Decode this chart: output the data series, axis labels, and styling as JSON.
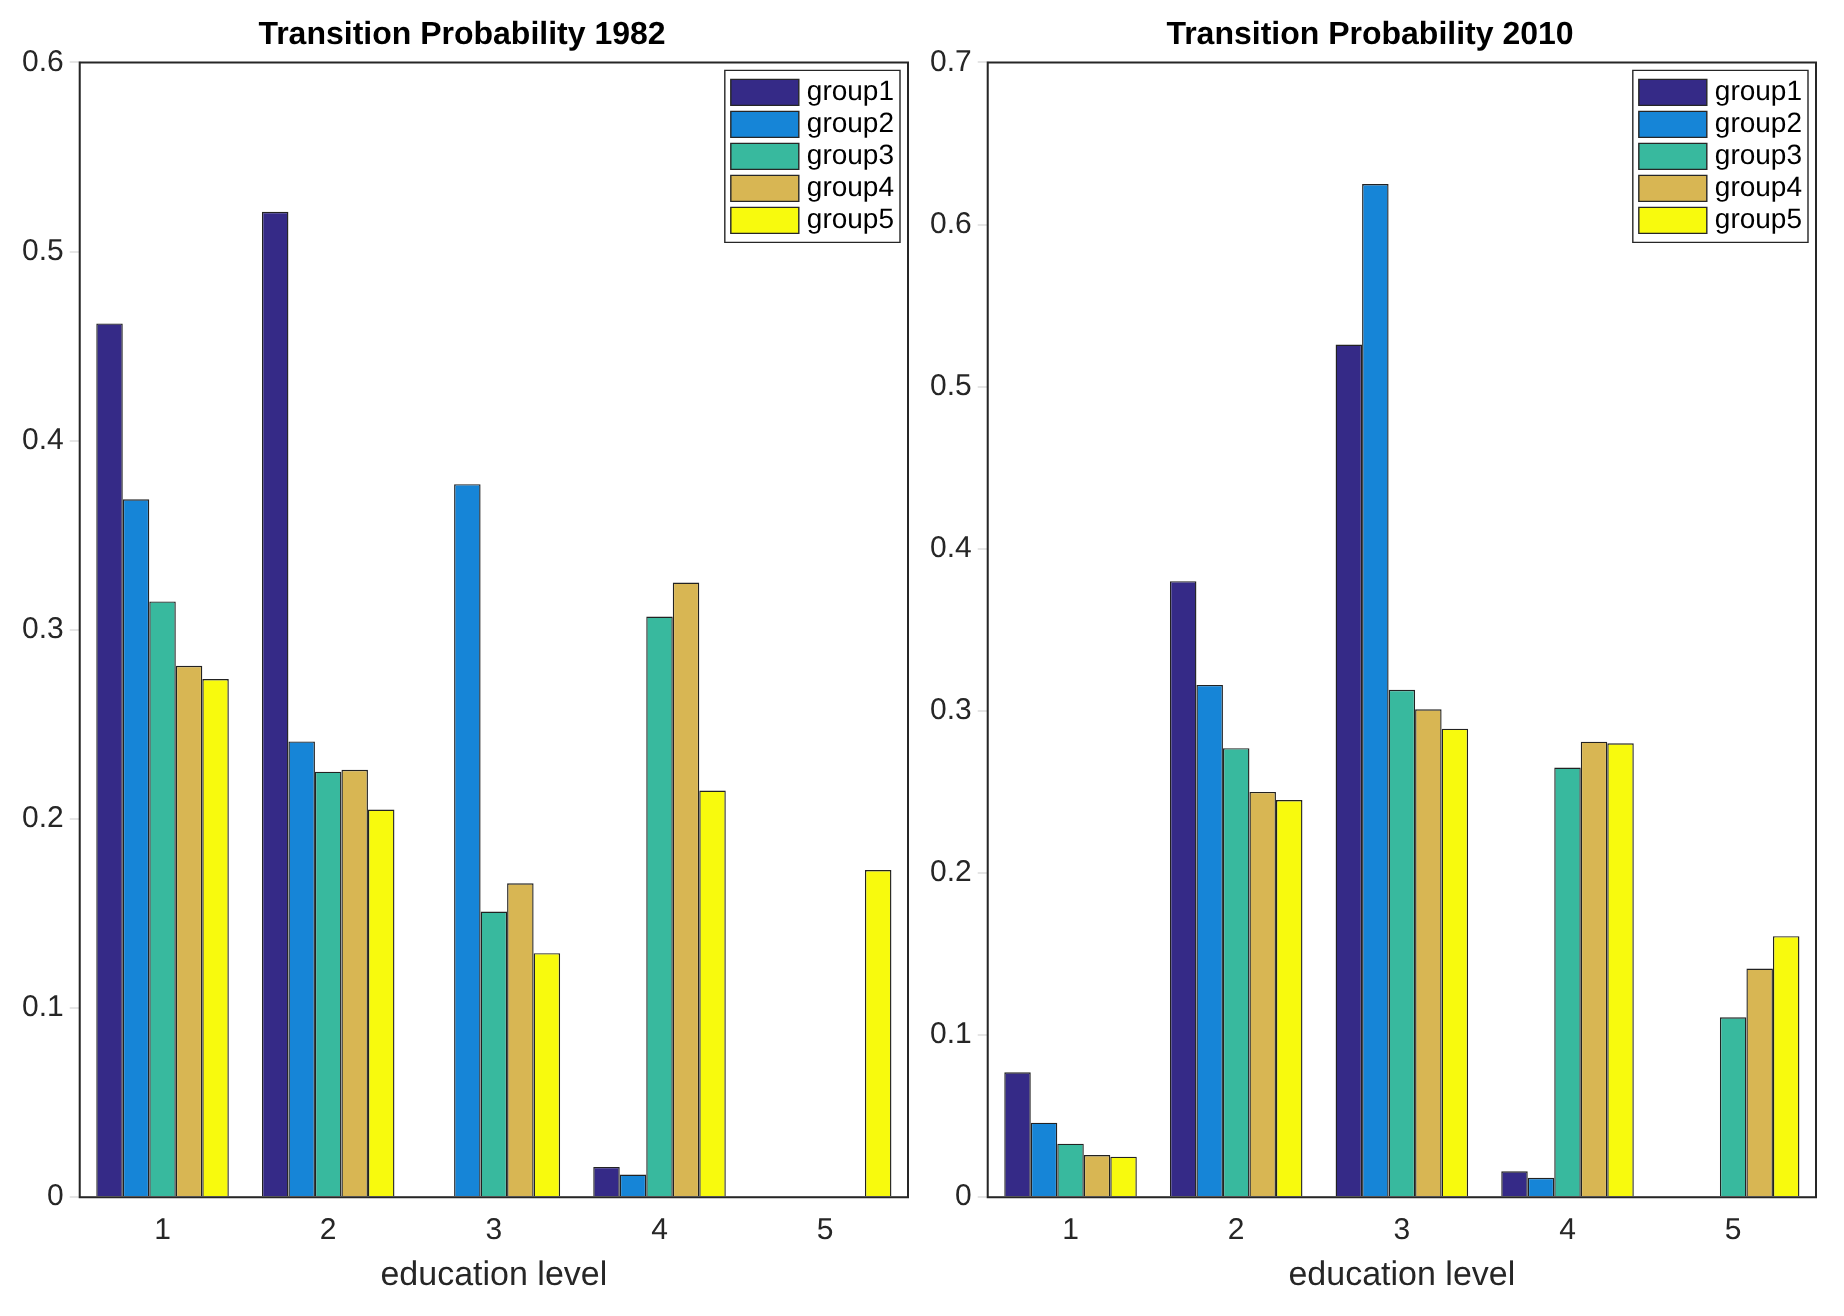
{
  "chart_data": [
    {
      "type": "bar",
      "title": "Transition Probability 1982",
      "xlabel": "education level",
      "categories": [
        "1",
        "2",
        "3",
        "4",
        "5"
      ],
      "ylim": [
        0,
        0.6
      ],
      "yticks": [
        0,
        0.1,
        0.2,
        0.3,
        0.4,
        0.5,
        0.6
      ],
      "grid": false,
      "legend": "top right",
      "series": [
        {
          "name": "group1",
          "color": "#352a87",
          "values": [
            0.462,
            0.521,
            0,
            0.016,
            0
          ]
        },
        {
          "name": "group2",
          "color": "#1685d7",
          "values": [
            0.369,
            0.241,
            0.377,
            0.012,
            0
          ]
        },
        {
          "name": "group3",
          "color": "#38b99e",
          "values": [
            0.315,
            0.225,
            0.151,
            0.307,
            0
          ]
        },
        {
          "name": "group4",
          "color": "#d8b653",
          "values": [
            0.281,
            0.226,
            0.166,
            0.325,
            0
          ]
        },
        {
          "name": "group5",
          "color": "#f8fa0d",
          "values": [
            0.274,
            0.205,
            0.129,
            0.215,
            0.173
          ]
        }
      ]
    },
    {
      "type": "bar",
      "title": "Transition Probability 2010",
      "xlabel": "education level",
      "categories": [
        "1",
        "2",
        "3",
        "4",
        "5"
      ],
      "ylim": [
        0,
        0.7
      ],
      "yticks": [
        0,
        0.1,
        0.2,
        0.3,
        0.4,
        0.5,
        0.6,
        0.7
      ],
      "grid": false,
      "legend": "top right",
      "series": [
        {
          "name": "group1",
          "color": "#352a87",
          "values": [
            0.077,
            0.38,
            0.526,
            0.016,
            0
          ]
        },
        {
          "name": "group2",
          "color": "#1685d7",
          "values": [
            0.046,
            0.316,
            0.625,
            0.012,
            0
          ]
        },
        {
          "name": "group3",
          "color": "#38b99e",
          "values": [
            0.033,
            0.277,
            0.313,
            0.265,
            0.111
          ]
        },
        {
          "name": "group4",
          "color": "#d8b653",
          "values": [
            0.026,
            0.25,
            0.301,
            0.281,
            0.141
          ]
        },
        {
          "name": "group5",
          "color": "#f8fa0d",
          "values": [
            0.025,
            0.245,
            0.289,
            0.28,
            0.161
          ]
        }
      ]
    }
  ]
}
